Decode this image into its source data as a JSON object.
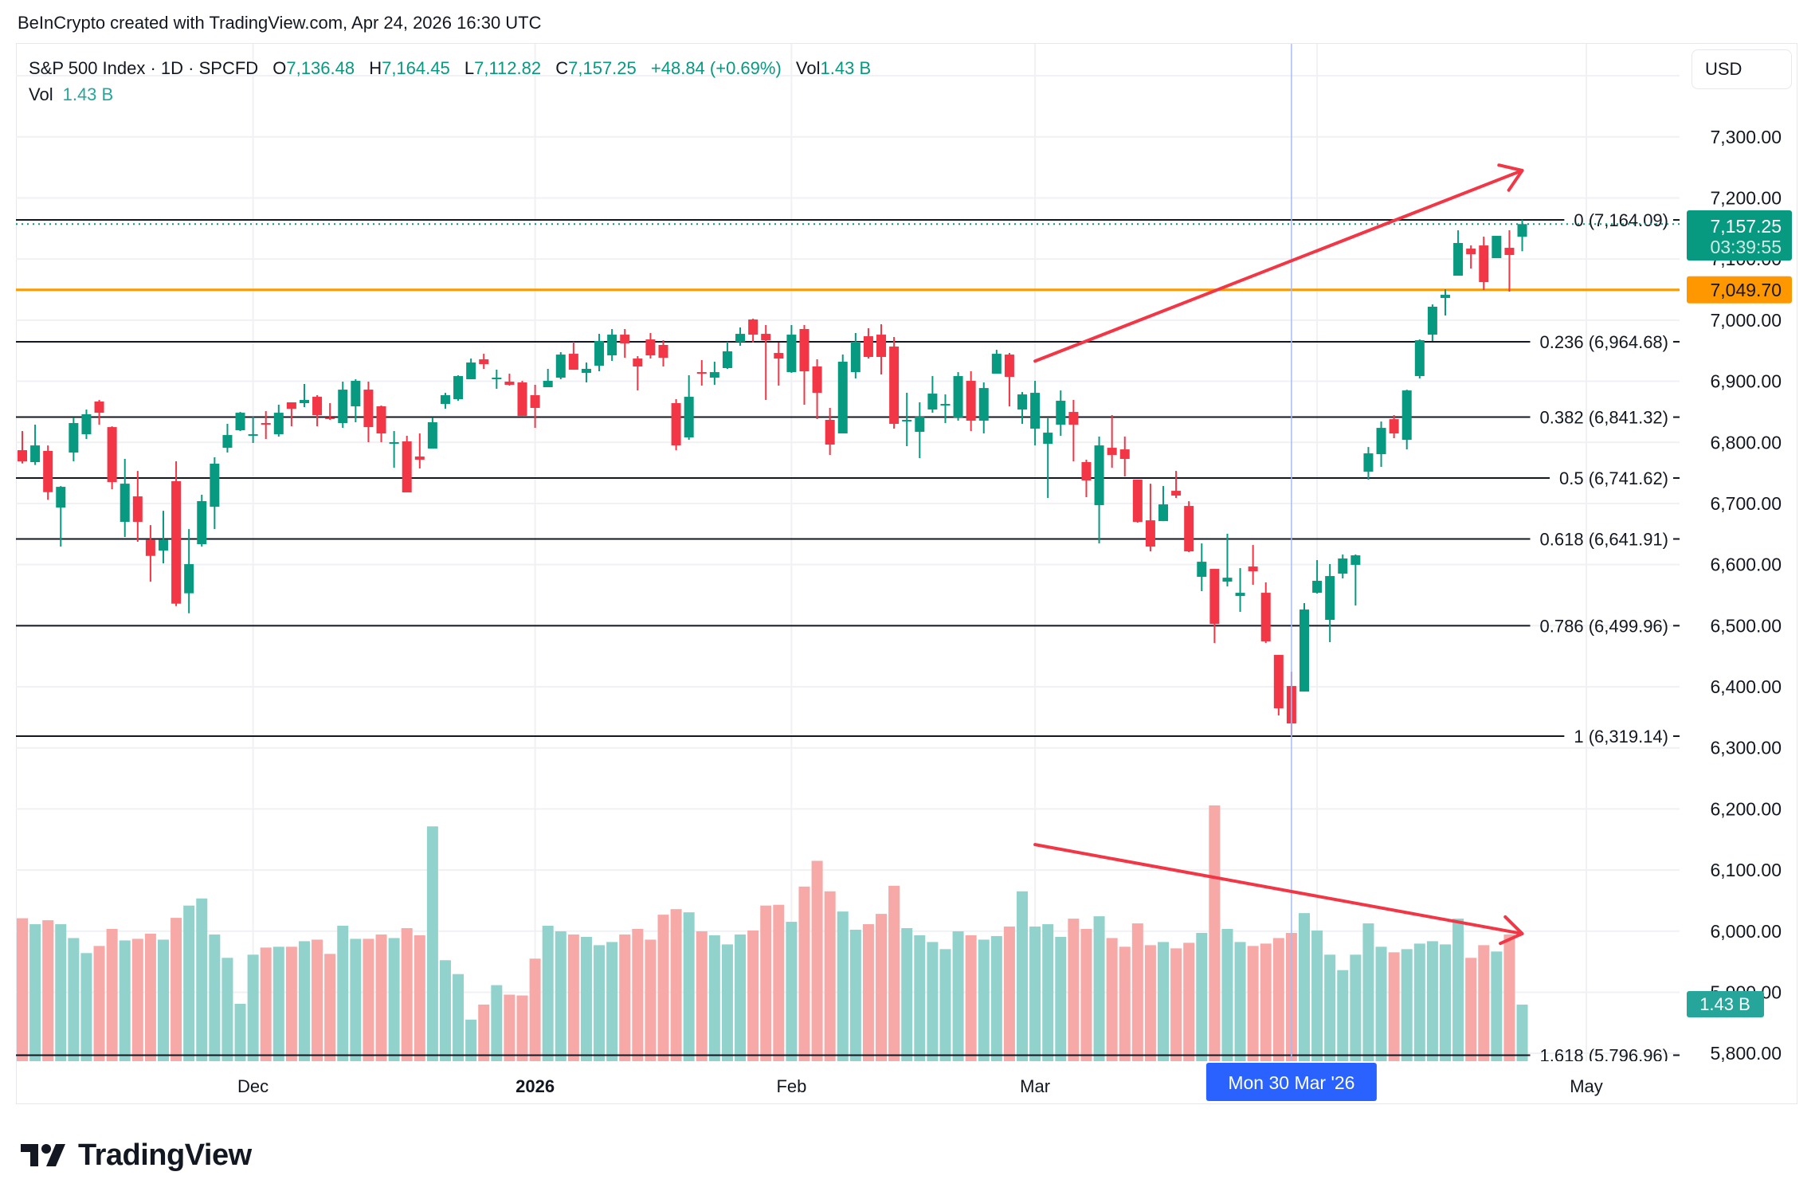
{
  "header": {
    "attribution": "BeInCrypto created with TradingView.com, Apr 24, 2026 16:30 UTC"
  },
  "legend": {
    "symbol": "S&P 500 Index · 1D · SPCFD",
    "o_label": "O",
    "open": "7,136.48",
    "h_label": "H",
    "high": "7,164.45",
    "l_label": "L",
    "low": "7,112.82",
    "c_label": "C",
    "close": "7,157.25",
    "change": "+48.84 (+0.69%)",
    "vol_label": "Vol",
    "volume": "1.43 B",
    "vol_row_label": "Vol",
    "vol_row_value": "1.43 B"
  },
  "currency_button": "USD",
  "badges": {
    "last_price": "7,157.25",
    "countdown": "03:39:55",
    "horizontal_line_price": "7,049.70",
    "volume": "1.43 B"
  },
  "crosshair": {
    "date": "2026-03-30",
    "label": "Mon 30 Mar '26"
  },
  "logo": {
    "text": "TradingView"
  },
  "colors": {
    "up": "#089981",
    "down": "#f23645",
    "volume_up": "#92d2cc",
    "volume_down": "#f7a9a7",
    "fib_line": "#131722",
    "horizontal_line": "#ff9800",
    "annotation": "#f23645",
    "crosshair_label": "#2962ff",
    "volume_badge": "#26a69a"
  },
  "chart_data": {
    "type": "candlestick",
    "symbol": "S&P 500 Index",
    "interval": "1D",
    "y_range": [
      5780,
      7420
    ],
    "volume_unit": "B",
    "grid": true,
    "candles": {
      "columns": [
        "date",
        "open",
        "high",
        "low",
        "close",
        "volume"
      ],
      "rows": [
        [
          "2025-11-04",
          6787.2,
          6818.5,
          6765.5,
          6769.0,
          3.61
        ],
        [
          "2025-11-05",
          6767.7,
          6829.0,
          6763.0,
          6795.0,
          3.46
        ],
        [
          "2025-11-06",
          6786.0,
          6795.0,
          6706.0,
          6718.5,
          3.56
        ],
        [
          "2025-11-07",
          6693.3,
          6728.5,
          6629.4,
          6727.2,
          3.46
        ],
        [
          "2025-11-10",
          6783.3,
          6840.7,
          6769.0,
          6831.6,
          3.11
        ],
        [
          "2025-11-11",
          6813.3,
          6853.7,
          6805.5,
          6846.0,
          2.73
        ],
        [
          "2025-11-12",
          6866.8,
          6869.4,
          6829.0,
          6848.5,
          2.91
        ],
        [
          "2025-11-13",
          6825.0,
          6826.3,
          6723.3,
          6735.0,
          3.34
        ],
        [
          "2025-11-14",
          6669.9,
          6772.9,
          6645.1,
          6732.4,
          3.05
        ],
        [
          "2025-11-17",
          6711.6,
          6753.3,
          6637.3,
          6669.9,
          3.09
        ],
        [
          "2025-11-18",
          6640.3,
          6664.6,
          6572.0,
          6614.2,
          3.22
        ],
        [
          "2025-11-19",
          6622.9,
          6688.1,
          6602.0,
          6640.3,
          3.07
        ],
        [
          "2025-11-20",
          6736.4,
          6769.0,
          6532.0,
          6536.0,
          3.62
        ],
        [
          "2025-11-21",
          6553.0,
          6658.1,
          6520.3,
          6600.7,
          3.93
        ],
        [
          "2025-11-24",
          6633.4,
          6714.2,
          6629.4,
          6703.8,
          4.11
        ],
        [
          "2025-11-25",
          6694.6,
          6775.5,
          6658.1,
          6765.1,
          3.2
        ],
        [
          "2025-11-26",
          6791.1,
          6830.3,
          6783.3,
          6812.0,
          2.61
        ],
        [
          "2025-11-28",
          6819.8,
          6849.8,
          6818.5,
          6848.5,
          1.45
        ],
        [
          "2025-12-01",
          6812.0,
          6842.0,
          6799.0,
          6813.3,
          2.69
        ],
        [
          "2025-12-02",
          6831.6,
          6851.1,
          6805.5,
          6829.0,
          2.87
        ],
        [
          "2025-12-03",
          6813.3,
          6861.6,
          6809.4,
          6848.5,
          2.89
        ],
        [
          "2025-12-04",
          6865.5,
          6865.5,
          6826.3,
          6855.0,
          2.89
        ],
        [
          "2025-12-05",
          6864.2,
          6895.5,
          6857.6,
          6869.4,
          3.03
        ],
        [
          "2025-12-08",
          6874.6,
          6877.2,
          6826.3,
          6844.6,
          3.07
        ],
        [
          "2025-12-09",
          6840.7,
          6864.2,
          6836.8,
          6838.1,
          2.71
        ],
        [
          "2025-12-10",
          6831.6,
          6899.4,
          6823.8,
          6886.3,
          3.42
        ],
        [
          "2025-12-11",
          6859.0,
          6903.3,
          6832.9,
          6900.7,
          3.09
        ],
        [
          "2025-12-12",
          6886.3,
          6899.4,
          6800.3,
          6825.0,
          3.09
        ],
        [
          "2025-12-15",
          6859.0,
          6860.3,
          6800.3,
          6814.6,
          3.2
        ],
        [
          "2025-12-16",
          6799.0,
          6818.5,
          6758.6,
          6800.3,
          3.11
        ],
        [
          "2025-12-17",
          6801.6,
          6810.7,
          6718.1,
          6718.1,
          3.36
        ],
        [
          "2025-12-18",
          6776.8,
          6814.6,
          6757.3,
          6771.6,
          3.18
        ],
        [
          "2025-12-19",
          6789.8,
          6840.7,
          6789.8,
          6832.9,
          5.93
        ],
        [
          "2025-12-22",
          6862.9,
          6881.1,
          6855.1,
          6877.2,
          2.55
        ],
        [
          "2025-12-23",
          6870.7,
          6909.8,
          6868.1,
          6908.5,
          2.2
        ],
        [
          "2025-12-24",
          6903.3,
          6937.2,
          6903.3,
          6930.7,
          1.05
        ],
        [
          "2025-12-26",
          6935.9,
          6945.0,
          6920.3,
          6928.1,
          1.43
        ],
        [
          "2025-12-29",
          6903.3,
          6919.0,
          6887.7,
          6905.9,
          1.92
        ],
        [
          "2025-12-30",
          6899.4,
          6912.4,
          6892.9,
          6894.2,
          1.68
        ],
        [
          "2025-12-31",
          6898.1,
          6900.7,
          6843.3,
          6843.3,
          1.66
        ],
        [
          "2026-01-02",
          6877.2,
          6894.2,
          6823.8,
          6856.4,
          2.59
        ],
        [
          "2026-01-05",
          6890.3,
          6920.3,
          6890.3,
          6900.7,
          3.42
        ],
        [
          "2026-01-06",
          6905.9,
          6947.6,
          6903.3,
          6943.7,
          3.28
        ],
        [
          "2026-01-07",
          6945.0,
          6964.6,
          6918.9,
          6918.9,
          3.2
        ],
        [
          "2026-01-08",
          6913.7,
          6930.7,
          6898.1,
          6920.3,
          3.14
        ],
        [
          "2026-01-09",
          6925.5,
          6977.6,
          6916.3,
          6965.9,
          2.93
        ],
        [
          "2026-01-12",
          6942.4,
          6985.5,
          6933.3,
          6976.3,
          3.01
        ],
        [
          "2026-01-13",
          6976.3,
          6985.5,
          6938.5,
          6962.0,
          3.2
        ],
        [
          "2026-01-14",
          6937.2,
          6941.1,
          6885.0,
          6924.2,
          3.34
        ],
        [
          "2026-01-15",
          6968.5,
          6979.0,
          6937.2,
          6942.4,
          3.07
        ],
        [
          "2026-01-16",
          6959.4,
          6967.2,
          6924.2,
          6938.5,
          3.7
        ],
        [
          "2026-01-20",
          6864.2,
          6870.7,
          6787.2,
          6795.1,
          3.84
        ],
        [
          "2026-01-21",
          6808.1,
          6909.8,
          6804.2,
          6874.6,
          3.76
        ],
        [
          "2026-01-22",
          6915.0,
          6934.6,
          6892.9,
          6912.4,
          3.28
        ],
        [
          "2026-01-23",
          6905.9,
          6932.0,
          6894.2,
          6915.0,
          3.18
        ],
        [
          "2026-01-26",
          6921.6,
          6964.6,
          6920.3,
          6949.0,
          2.95
        ],
        [
          "2026-01-27",
          6964.6,
          6988.1,
          6958.1,
          6977.6,
          3.2
        ],
        [
          "2026-01-28",
          7001.1,
          7002.4,
          6963.3,
          6976.3,
          3.3
        ],
        [
          "2026-01-29",
          6977.6,
          6992.0,
          6869.4,
          6967.2,
          3.93
        ],
        [
          "2026-01-30",
          6946.3,
          6963.3,
          6892.9,
          6937.2,
          3.95
        ],
        [
          "2026-02-02",
          6915.0,
          6992.0,
          6913.7,
          6976.3,
          3.52
        ],
        [
          "2026-02-03",
          6985.5,
          6992.0,
          6861.6,
          6916.3,
          4.41
        ],
        [
          "2026-02-04",
          6924.2,
          6935.9,
          6838.1,
          6881.1,
          5.06
        ],
        [
          "2026-02-05",
          6836.8,
          6856.4,
          6779.4,
          6796.4,
          4.29
        ],
        [
          "2026-02-06",
          6814.6,
          6943.7,
          6814.6,
          6932.0,
          3.78
        ],
        [
          "2026-02-09",
          6915.0,
          6979.0,
          6904.6,
          6964.6,
          3.32
        ],
        [
          "2026-02-10",
          6973.7,
          6986.8,
          6937.2,
          6939.8,
          3.46
        ],
        [
          "2026-02-11",
          6976.3,
          6993.3,
          6911.1,
          6939.8,
          3.72
        ],
        [
          "2026-02-12",
          6956.8,
          6972.4,
          6822.5,
          6830.3,
          4.43
        ],
        [
          "2026-02-13",
          6834.2,
          6881.1,
          6793.8,
          6836.8,
          3.36
        ],
        [
          "2026-02-17",
          6817.2,
          6865.5,
          6774.2,
          6842.0,
          3.18
        ],
        [
          "2026-02-18",
          6853.8,
          6908.5,
          6848.5,
          6879.8,
          3.01
        ],
        [
          "2026-02-19",
          6860.3,
          6878.5,
          6831.6,
          6862.9,
          2.83
        ],
        [
          "2026-02-20",
          6840.7,
          6915.0,
          6835.5,
          6908.5,
          3.28
        ],
        [
          "2026-02-23",
          6900.7,
          6916.3,
          6818.5,
          6835.5,
          3.18
        ],
        [
          "2026-02-24",
          6835.5,
          6898.1,
          6814.6,
          6888.9,
          3.07
        ],
        [
          "2026-02-25",
          6912.4,
          6951.5,
          6912.4,
          6945.0,
          3.16
        ],
        [
          "2026-02-26",
          6943.7,
          6946.3,
          6858.9,
          6907.2,
          3.4
        ],
        [
          "2026-02-27",
          6853.7,
          6882.4,
          6830.2,
          6878.5,
          4.29
        ],
        [
          "2026-03-02",
          6822.4,
          6900.7,
          6795.0,
          6881.1,
          3.4
        ],
        [
          "2026-03-03",
          6797.6,
          6839.4,
          6709.0,
          6815.9,
          3.46
        ],
        [
          "2026-03-04",
          6829.0,
          6885.0,
          6810.7,
          6868.1,
          3.14
        ],
        [
          "2026-03-05",
          6849.8,
          6869.4,
          6769.0,
          6829.0,
          3.6
        ],
        [
          "2026-03-06",
          6767.7,
          6771.6,
          6710.3,
          6737.7,
          3.34
        ],
        [
          "2026-03-09",
          6697.2,
          6809.4,
          6634.6,
          6795.0,
          3.66
        ],
        [
          "2026-03-10",
          6791.1,
          6844.6,
          6758.5,
          6779.4,
          3.11
        ],
        [
          "2026-03-11",
          6788.5,
          6809.4,
          6744.2,
          6772.9,
          2.89
        ],
        [
          "2026-03-12",
          6739.0,
          6739.0,
          6668.5,
          6669.8,
          3.48
        ],
        [
          "2026-03-13",
          6672.4,
          6732.4,
          6621.6,
          6629.4,
          2.93
        ],
        [
          "2026-03-16",
          6671.1,
          6728.5,
          6671.1,
          6698.5,
          3.01
        ],
        [
          "2026-03-17",
          6720.7,
          6753.3,
          6709.0,
          6712.9,
          2.85
        ],
        [
          "2026-03-18",
          6695.9,
          6703.7,
          6620.3,
          6621.6,
          2.99
        ],
        [
          "2026-03-19",
          6579.9,
          6634.6,
          6556.4,
          6604.6,
          3.24
        ],
        [
          "2026-03-20",
          6592.9,
          6592.9,
          6471.6,
          6503.0,
          6.46
        ],
        [
          "2026-03-23",
          6572.0,
          6650.3,
          6564.2,
          6578.5,
          3.34
        ],
        [
          "2026-03-24",
          6548.5,
          6594.2,
          6522.5,
          6553.8,
          3.01
        ],
        [
          "2026-03-25",
          6596.8,
          6632.0,
          6566.8,
          6589.0,
          2.91
        ],
        [
          "2026-03-26",
          6553.8,
          6570.8,
          6471.7,
          6474.3,
          2.97
        ],
        [
          "2026-03-27",
          6452.1,
          6452.1,
          6353.0,
          6364.7,
          3.11
        ],
        [
          "2026-03-30",
          6401.2,
          6424.7,
          6319.1,
          6339.9,
          3.24
        ],
        [
          "2026-03-31",
          6392.1,
          6536.9,
          6392.1,
          6526.4,
          3.74
        ],
        [
          "2026-04-01",
          6553.8,
          6607.3,
          6552.5,
          6573.4,
          3.3
        ],
        [
          "2026-04-02",
          6509.5,
          6600.8,
          6473.0,
          6581.2,
          2.69
        ],
        [
          "2026-04-06",
          6585.1,
          6616.4,
          6577.3,
          6609.9,
          2.3
        ],
        [
          "2026-04-07",
          6599.5,
          6616.4,
          6533.0,
          6615.1,
          2.69
        ],
        [
          "2026-04-08",
          6751.9,
          6792.4,
          6738.9,
          6782.0,
          3.48
        ],
        [
          "2026-04-09",
          6780.7,
          6834.1,
          6759.8,
          6823.7,
          2.89
        ],
        [
          "2026-04-10",
          6838.0,
          6844.6,
          6806.8,
          6814.6,
          2.75
        ],
        [
          "2026-04-13",
          6804.1,
          6886.3,
          6788.5,
          6885.0,
          2.83
        ],
        [
          "2026-04-14",
          6908.5,
          6968.5,
          6904.6,
          6967.2,
          2.97
        ],
        [
          "2026-04-15",
          6976.3,
          7025.8,
          6965.9,
          7022.0,
          3.03
        ],
        [
          "2026-04-16",
          7036.3,
          7050.6,
          7007.6,
          7041.5,
          2.95
        ],
        [
          "2026-04-17",
          7072.8,
          7147.1,
          7072.8,
          7126.3,
          3.6
        ],
        [
          "2026-04-20",
          7117.1,
          7122.3,
          7084.5,
          7108.0,
          2.61
        ],
        [
          "2026-04-21",
          7122.3,
          7136.7,
          7049.3,
          7062.3,
          2.93
        ],
        [
          "2026-04-22",
          7101.5,
          7138.0,
          7101.5,
          7138.0,
          2.77
        ],
        [
          "2026-04-23",
          7118.4,
          7147.1,
          7046.7,
          7106.7,
          3.2
        ],
        [
          "2026-04-24",
          7136.48,
          7164.45,
          7112.82,
          7157.25,
          1.43
        ]
      ]
    },
    "y_ticks": [
      {
        "value": 7300,
        "label": "7,300.00"
      },
      {
        "value": 7200,
        "label": "7,200.00"
      },
      {
        "value": 7100,
        "label": "7,100.00"
      },
      {
        "value": 7000,
        "label": "7,000.00"
      },
      {
        "value": 6900,
        "label": "6,900.00"
      },
      {
        "value": 6800,
        "label": "6,800.00"
      },
      {
        "value": 6700,
        "label": "6,700.00"
      },
      {
        "value": 6600,
        "label": "6,600.00"
      },
      {
        "value": 6500,
        "label": "6,500.00"
      },
      {
        "value": 6400,
        "label": "6,400.00"
      },
      {
        "value": 6300,
        "label": "6,300.00"
      },
      {
        "value": 6200,
        "label": "6,200.00"
      },
      {
        "value": 6100,
        "label": "6,100.00"
      },
      {
        "value": 6000,
        "label": "6,000.00"
      },
      {
        "value": 5900,
        "label": "5,900.00"
      },
      {
        "value": 5800,
        "label": "5,800.00"
      }
    ],
    "x_ticks": [
      {
        "label": "Dec",
        "date": "2025-12-01",
        "bold": false
      },
      {
        "label": "2026",
        "date": "2026-01-02",
        "bold": true
      },
      {
        "label": "Feb",
        "date": "2026-02-02",
        "bold": false
      },
      {
        "label": "Mar",
        "date": "2026-03-02",
        "bold": false
      },
      {
        "label": "May",
        "date": "2026-05-01",
        "bold": false
      }
    ],
    "fibonacci": [
      {
        "ratio": "0",
        "price": 7164.09,
        "label": "0 (7,164.09)"
      },
      {
        "ratio": "0.236",
        "price": 6964.68,
        "label": "0.236 (6,964.68)"
      },
      {
        "ratio": "0.382",
        "price": 6841.32,
        "label": "0.382 (6,841.32)"
      },
      {
        "ratio": "0.5",
        "price": 6741.62,
        "label": "0.5 (6,741.62)"
      },
      {
        "ratio": "0.618",
        "price": 6641.91,
        "label": "0.618 (6,641.91)"
      },
      {
        "ratio": "0.786",
        "price": 6499.96,
        "label": "0.786 (6,499.96)"
      },
      {
        "ratio": "1",
        "price": 6319.14,
        "label": "1 (6,319.14)"
      },
      {
        "ratio": "1.618",
        "price": 5796.96,
        "label": "1.618 (5,796.96)"
      }
    ],
    "horizontal_line": {
      "price": 7049.7
    },
    "last_price": 7157.25,
    "annotations": [
      {
        "kind": "price-arrow",
        "from": {
          "date": "2026-03-02",
          "price": 6933
        },
        "to": {
          "date": "2026-04-24",
          "price": 7245
        }
      },
      {
        "kind": "volume-arrow",
        "from": {
          "date": "2026-03-02",
          "volume": 5.47
        },
        "to": {
          "date": "2026-04-24",
          "volume": 3.22
        }
      }
    ]
  }
}
